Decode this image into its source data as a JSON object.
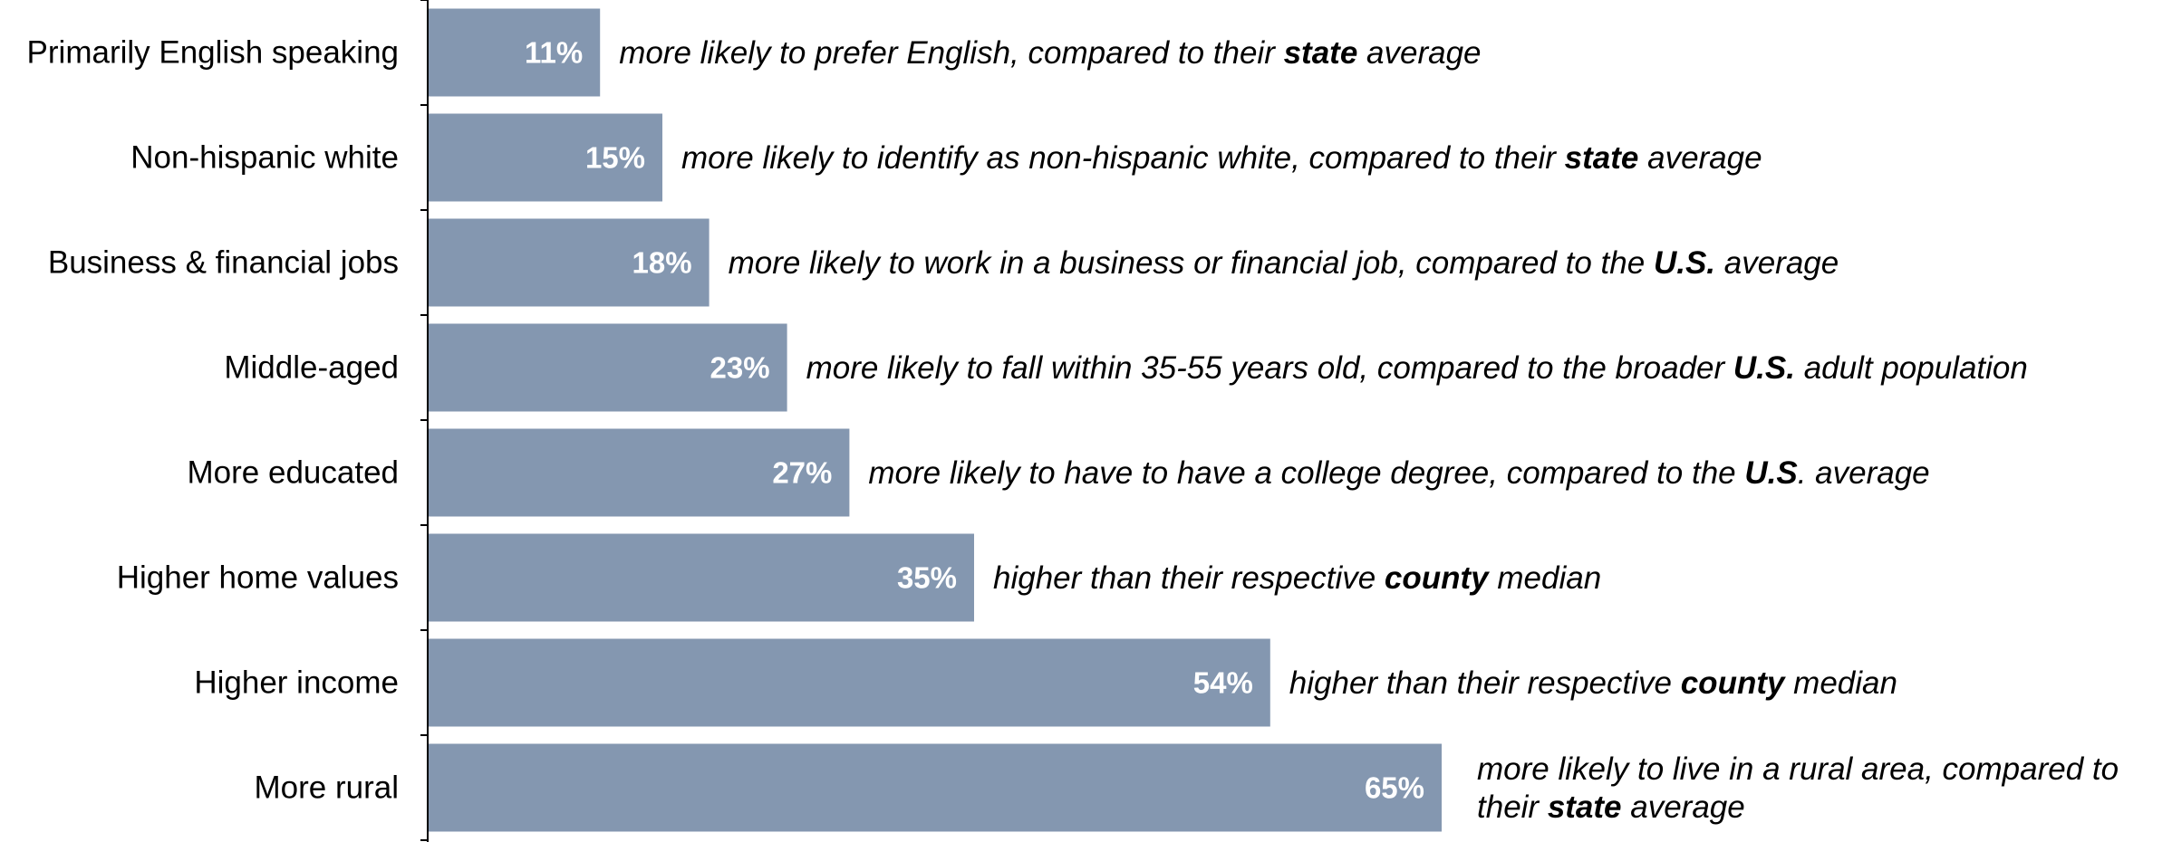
{
  "chart_data": {
    "type": "bar",
    "orientation": "horizontal",
    "categories": [
      "Primarily English speaking",
      "Non-hispanic white",
      "Business & financial jobs",
      "Middle-aged",
      "More educated",
      "Higher home values",
      "Higher income",
      "More rural"
    ],
    "values": [
      11,
      15,
      18,
      23,
      27,
      35,
      54,
      65
    ],
    "value_labels": [
      "11%",
      "15%",
      "18%",
      "23%",
      "27%",
      "35%",
      "54%",
      "65%"
    ],
    "annotations": [
      [
        {
          "t": "more likely",
          "b": false
        },
        {
          "t": " to prefer English, compared to their ",
          "b": false
        },
        {
          "t": "state",
          "b": true
        },
        {
          "t": " average",
          "b": false
        }
      ],
      [
        {
          "t": "more likely",
          "b": false
        },
        {
          "t": " to identify as non-hispanic white, compared to their ",
          "b": false
        },
        {
          "t": "state",
          "b": true
        },
        {
          "t": " average",
          "b": false
        }
      ],
      [
        {
          "t": "more likely",
          "b": false
        },
        {
          "t": " to work in a business or financial job, compared to the ",
          "b": false
        },
        {
          "t": "U.S.",
          "b": true
        },
        {
          "t": " average",
          "b": false
        }
      ],
      [
        {
          "t": "more likely",
          "b": false
        },
        {
          "t": " to fall within 35-55 years old, compared to the broader ",
          "b": false
        },
        {
          "t": "U.S.",
          "b": true
        },
        {
          "t": " adult population",
          "b": false
        }
      ],
      [
        {
          "t": "more likely",
          "b": false
        },
        {
          "t": " to have to have a college degree, compared to the ",
          "b": false
        },
        {
          "t": "U.S",
          "b": true
        },
        {
          "t": ". average",
          "b": false
        }
      ],
      [
        {
          "t": "higher than their respective ",
          "b": false
        },
        {
          "t": "county",
          "b": true
        },
        {
          "t": " median",
          "b": false
        }
      ],
      [
        {
          "t": "higher than their respective ",
          "b": false
        },
        {
          "t": "county",
          "b": true
        },
        {
          "t": " median",
          "b": false
        }
      ],
      [
        {
          "t": "more likely",
          "b": false
        },
        {
          "t": " to live in a rural area, compared to",
          "b": false
        },
        {
          "t": "\n",
          "b": false
        },
        {
          "t": "their ",
          "b": false
        },
        {
          "t": "state",
          "b": true
        },
        {
          "t": " average",
          "b": false
        }
      ]
    ],
    "xlim": [
      0,
      65
    ],
    "bar_color": "#8497B0",
    "axis_color": "#000000",
    "grid": false,
    "legend": "none"
  }
}
